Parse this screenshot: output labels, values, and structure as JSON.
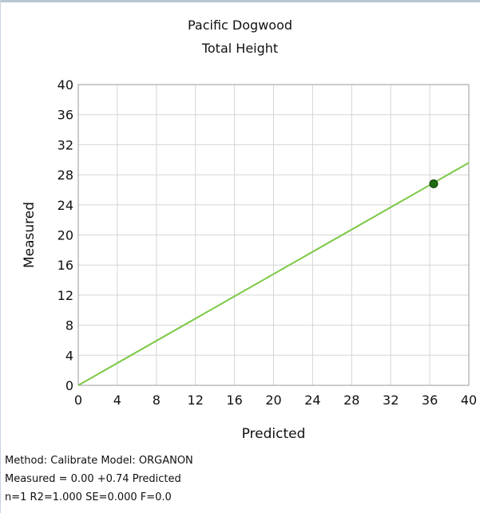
{
  "chart_data": {
    "type": "scatter",
    "title": "Pacific Dogwood",
    "subtitle": "Total Height",
    "xlabel": "Predicted",
    "ylabel": "Measured",
    "xlim": [
      0,
      40
    ],
    "ylim": [
      0,
      40
    ],
    "x_ticks": [
      0,
      4,
      8,
      12,
      16,
      20,
      24,
      28,
      32,
      36,
      40
    ],
    "y_ticks": [
      0,
      4,
      8,
      12,
      16,
      20,
      24,
      28,
      32,
      36,
      40
    ],
    "grid": true,
    "points": [
      {
        "x": 36.4,
        "y": 26.8
      }
    ],
    "fit_line": {
      "intercept": 0.0,
      "slope": 0.74,
      "color": "#7cc845"
    },
    "point_color": "#1f6b12"
  },
  "footer": {
    "line1": "Method: Calibrate   Model: ORGANON",
    "line2": "Measured = 0.00 +0.74 Predicted",
    "line3": "n=1 R2=1.000 SE=0.000 F=0.0"
  }
}
